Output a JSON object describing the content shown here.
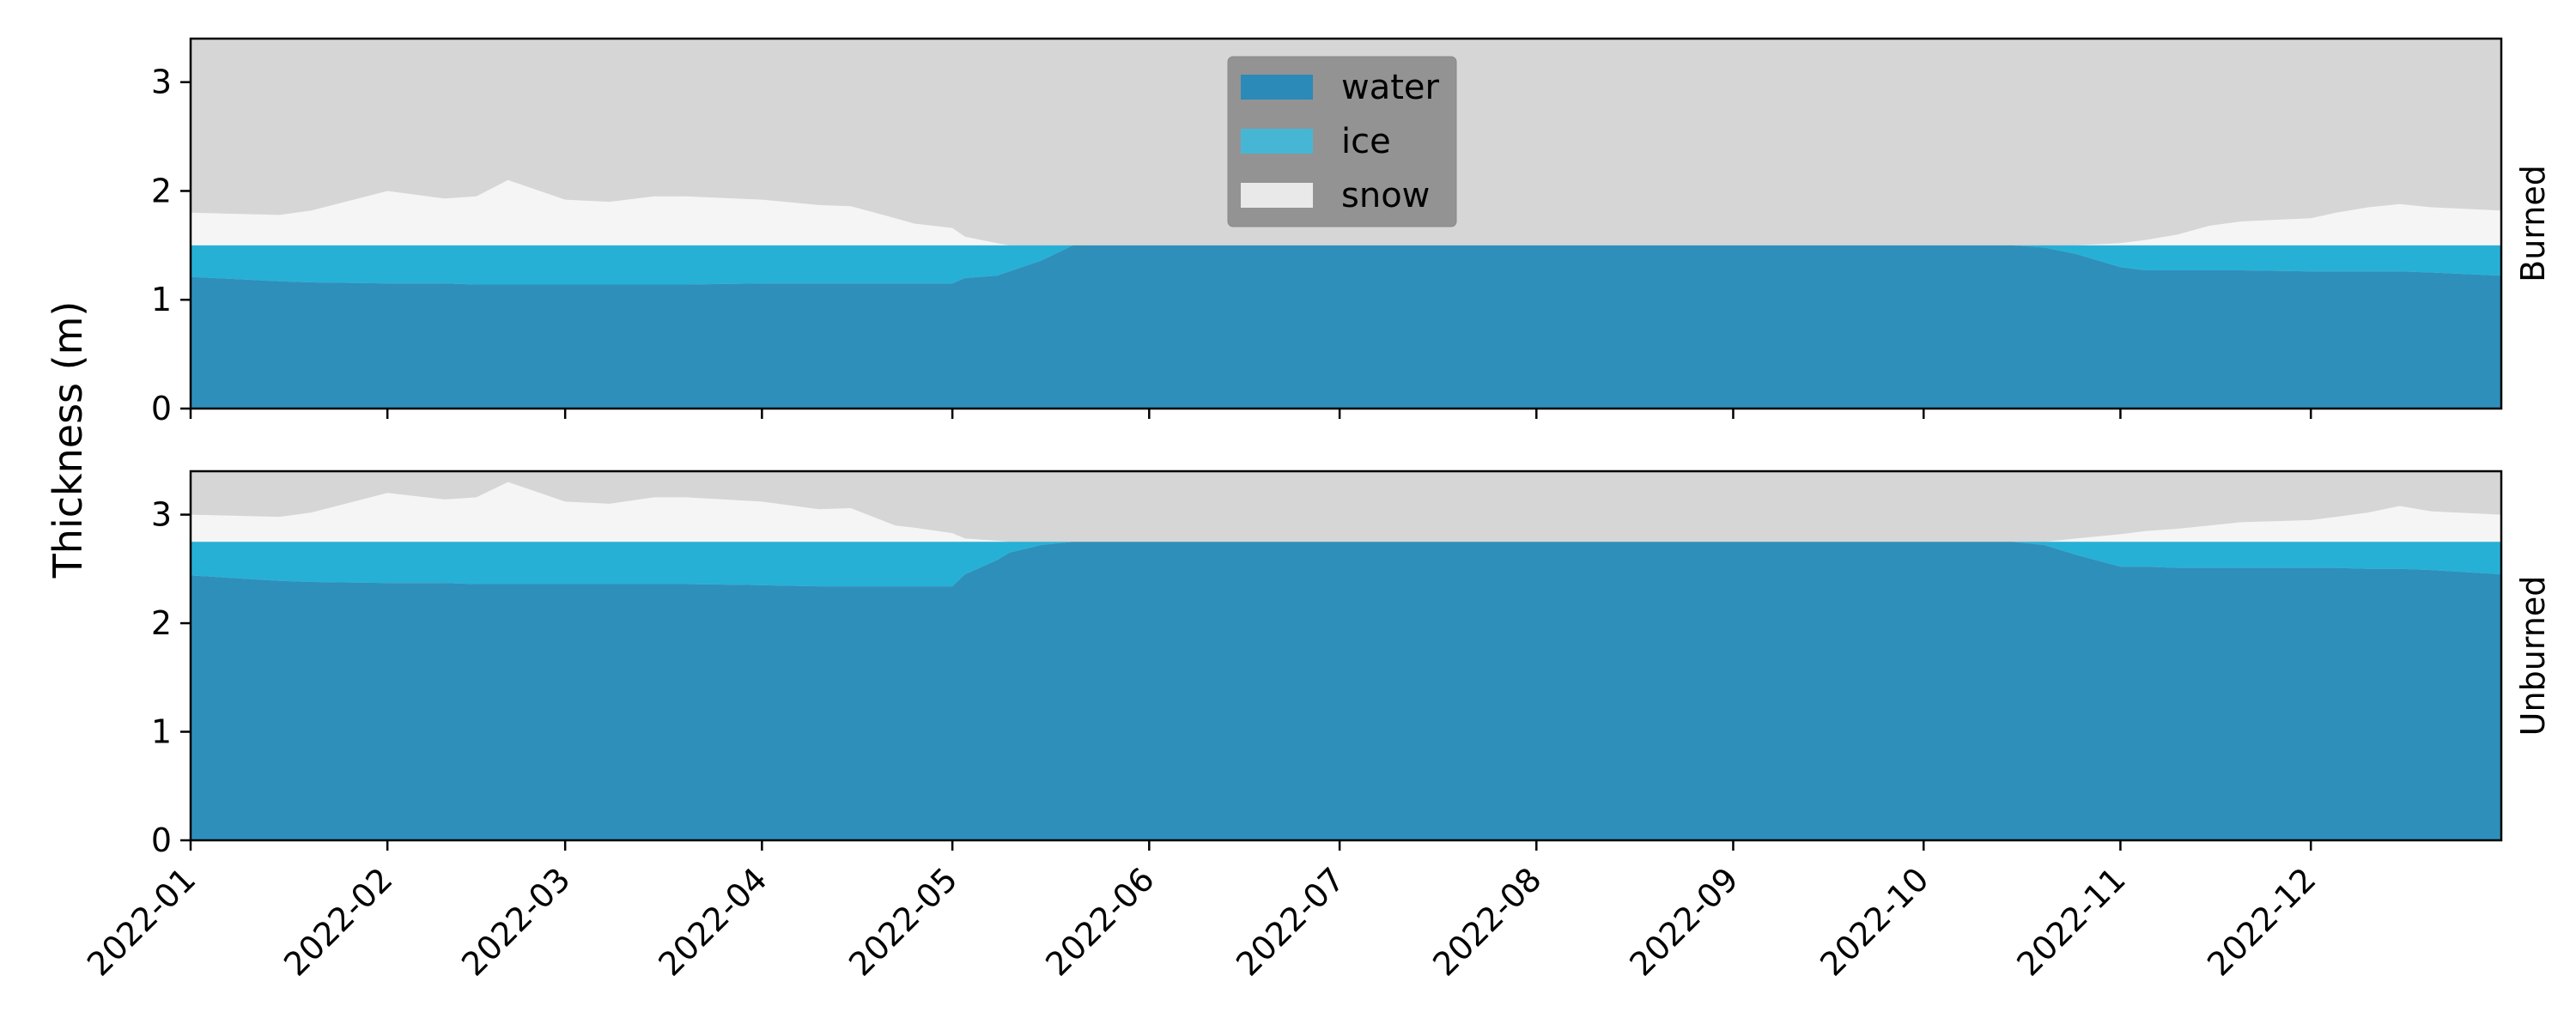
{
  "chart_data": {
    "type": "area",
    "ylabel": "Thickness (m)",
    "legend_position": "upper-center of top panel",
    "colors": {
      "water": "#2e8fbb",
      "ice": "#27b0d6",
      "snow": "#f5f5f5",
      "background": "#d6d6d6",
      "legend_box": "#939393",
      "legend_water": "#2b8ab8",
      "legend_ice": "#47b6d4",
      "legend_snow": "#e9e9e9"
    },
    "legend": [
      {
        "key": "water",
        "label": "water"
      },
      {
        "key": "ice",
        "label": "ice"
      },
      {
        "key": "snow",
        "label": "snow"
      }
    ],
    "x_ticks": [
      "2022-01",
      "2022-02",
      "2022-03",
      "2022-04",
      "2022-05",
      "2022-06",
      "2022-07",
      "2022-08",
      "2022-09",
      "2022-10",
      "2022-11",
      "2022-12"
    ],
    "xlim": [
      "2022-01-01",
      "2022-12-31"
    ],
    "y_ticks": [
      0,
      1,
      2,
      3
    ],
    "ylim": [
      0,
      3.4
    ],
    "panels": [
      {
        "title": "Burned",
        "surface": 1.5,
        "x": [
          "2022-01-01",
          "2022-01-15",
          "2022-01-20",
          "2022-02-01",
          "2022-02-10",
          "2022-02-15",
          "2022-02-20",
          "2022-03-01",
          "2022-03-08",
          "2022-03-15",
          "2022-03-20",
          "2022-04-01",
          "2022-04-10",
          "2022-04-15",
          "2022-04-22",
          "2022-04-25",
          "2022-05-01",
          "2022-05-03",
          "2022-05-08",
          "2022-05-10",
          "2022-05-15",
          "2022-05-20",
          "2022-05-25",
          "2022-06-01",
          "2022-10-01",
          "2022-10-15",
          "2022-10-20",
          "2022-10-25",
          "2022-11-01",
          "2022-11-05",
          "2022-11-10",
          "2022-11-15",
          "2022-11-20",
          "2022-12-01",
          "2022-12-05",
          "2022-12-10",
          "2022-12-15",
          "2022-12-20",
          "2022-12-31"
        ],
        "series": [
          {
            "key": "water",
            "values": [
              1.21,
              1.17,
              1.16,
              1.15,
              1.15,
              1.14,
              1.14,
              1.14,
              1.14,
              1.14,
              1.14,
              1.15,
              1.15,
              1.15,
              1.15,
              1.15,
              1.15,
              1.2,
              1.22,
              1.26,
              1.36,
              1.5,
              1.5,
              1.5,
              1.5,
              1.5,
              1.48,
              1.42,
              1.3,
              1.27,
              1.27,
              1.27,
              1.27,
              1.26,
              1.26,
              1.26,
              1.26,
              1.25,
              1.22
            ]
          },
          {
            "key": "ice",
            "values": [
              1.5,
              1.5,
              1.5,
              1.5,
              1.5,
              1.5,
              1.5,
              1.5,
              1.5,
              1.5,
              1.5,
              1.5,
              1.5,
              1.5,
              1.5,
              1.5,
              1.5,
              1.5,
              1.5,
              1.5,
              1.5,
              1.5,
              1.5,
              1.5,
              1.5,
              1.5,
              1.5,
              1.5,
              1.5,
              1.5,
              1.5,
              1.5,
              1.5,
              1.5,
              1.5,
              1.5,
              1.5,
              1.5,
              1.5
            ]
          },
          {
            "key": "snow",
            "values": [
              1.8,
              1.78,
              1.82,
              2.0,
              1.93,
              1.95,
              2.1,
              1.92,
              1.9,
              1.95,
              1.95,
              1.92,
              1.87,
              1.86,
              1.75,
              1.7,
              1.66,
              1.58,
              1.52,
              1.5,
              1.5,
              1.5,
              1.5,
              1.5,
              1.5,
              1.5,
              1.5,
              1.5,
              1.52,
              1.55,
              1.6,
              1.68,
              1.72,
              1.75,
              1.8,
              1.85,
              1.88,
              1.85,
              1.82
            ]
          }
        ]
      },
      {
        "title": "Unburned",
        "surface": 2.75,
        "x": [
          "2022-01-01",
          "2022-01-15",
          "2022-01-20",
          "2022-02-01",
          "2022-02-10",
          "2022-02-15",
          "2022-02-20",
          "2022-03-01",
          "2022-03-08",
          "2022-03-15",
          "2022-03-20",
          "2022-04-01",
          "2022-04-10",
          "2022-04-15",
          "2022-04-22",
          "2022-04-25",
          "2022-05-01",
          "2022-05-03",
          "2022-05-08",
          "2022-05-10",
          "2022-05-15",
          "2022-05-20",
          "2022-05-25",
          "2022-06-01",
          "2022-10-01",
          "2022-10-15",
          "2022-10-20",
          "2022-10-25",
          "2022-11-01",
          "2022-11-05",
          "2022-11-10",
          "2022-11-15",
          "2022-11-20",
          "2022-12-01",
          "2022-12-05",
          "2022-12-10",
          "2022-12-15",
          "2022-12-20",
          "2022-12-31"
        ],
        "series": [
          {
            "key": "water",
            "values": [
              2.44,
              2.39,
              2.38,
              2.37,
              2.37,
              2.36,
              2.36,
              2.36,
              2.36,
              2.36,
              2.36,
              2.35,
              2.34,
              2.34,
              2.34,
              2.34,
              2.34,
              2.45,
              2.58,
              2.65,
              2.72,
              2.75,
              2.75,
              2.75,
              2.75,
              2.75,
              2.72,
              2.63,
              2.52,
              2.52,
              2.51,
              2.51,
              2.51,
              2.51,
              2.51,
              2.5,
              2.5,
              2.49,
              2.45
            ]
          },
          {
            "key": "ice",
            "values": [
              2.75,
              2.75,
              2.75,
              2.75,
              2.75,
              2.75,
              2.75,
              2.75,
              2.75,
              2.75,
              2.75,
              2.75,
              2.75,
              2.75,
              2.75,
              2.75,
              2.75,
              2.75,
              2.75,
              2.75,
              2.75,
              2.75,
              2.75,
              2.75,
              2.75,
              2.75,
              2.75,
              2.75,
              2.75,
              2.75,
              2.75,
              2.75,
              2.75,
              2.75,
              2.75,
              2.75,
              2.75,
              2.75,
              2.75
            ]
          },
          {
            "key": "snow",
            "values": [
              3.0,
              2.98,
              3.02,
              3.2,
              3.14,
              3.16,
              3.3,
              3.12,
              3.1,
              3.16,
              3.16,
              3.12,
              3.05,
              3.06,
              2.9,
              2.88,
              2.83,
              2.78,
              2.76,
              2.75,
              2.75,
              2.75,
              2.75,
              2.75,
              2.75,
              2.75,
              2.75,
              2.78,
              2.82,
              2.85,
              2.87,
              2.9,
              2.93,
              2.95,
              2.98,
              3.02,
              3.08,
              3.03,
              3.0
            ]
          }
        ]
      }
    ]
  }
}
